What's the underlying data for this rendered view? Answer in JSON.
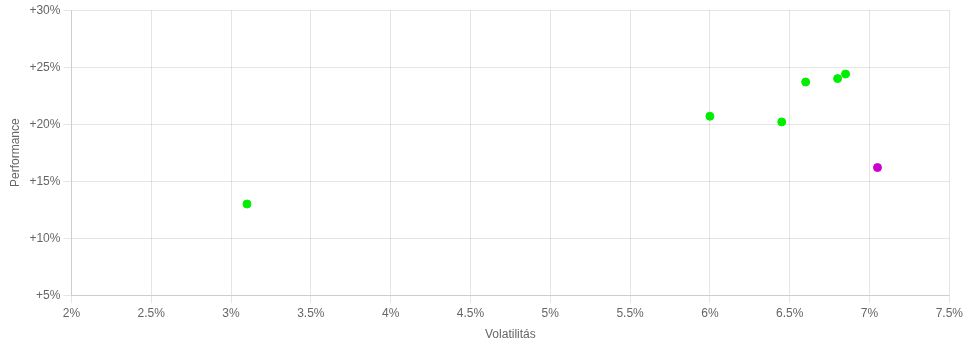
{
  "chart_data": {
    "type": "scatter",
    "xlabel": "Volatilitás",
    "ylabel": "Performance",
    "xlim": [
      0.02,
      0.075
    ],
    "ylim": [
      0.05,
      0.3
    ],
    "xticks": [
      {
        "value": 0.02,
        "label": "2%"
      },
      {
        "value": 0.025,
        "label": "2.5%"
      },
      {
        "value": 0.03,
        "label": "3%"
      },
      {
        "value": 0.035,
        "label": "3.5%"
      },
      {
        "value": 0.04,
        "label": "4%"
      },
      {
        "value": 0.045,
        "label": "4.5%"
      },
      {
        "value": 0.05,
        "label": "5%"
      },
      {
        "value": 0.055,
        "label": "5.5%"
      },
      {
        "value": 0.06,
        "label": "6%"
      },
      {
        "value": 0.065,
        "label": "6.5%"
      },
      {
        "value": 0.07,
        "label": "7%"
      },
      {
        "value": 0.075,
        "label": "7.5%"
      }
    ],
    "yticks": [
      {
        "value": 0.05,
        "label": "+5%"
      },
      {
        "value": 0.1,
        "label": "+10%"
      },
      {
        "value": 0.15,
        "label": "+15%"
      },
      {
        "value": 0.2,
        "label": "+20%"
      },
      {
        "value": 0.25,
        "label": "+25%"
      },
      {
        "value": 0.3,
        "label": "+30%"
      }
    ],
    "grid": true,
    "series": [
      {
        "color": "#00ee00",
        "x": [
          0.031,
          0.06,
          0.0645,
          0.066,
          0.068,
          0.0685
        ],
        "values": [
          0.13,
          0.207,
          0.202,
          0.237,
          0.24,
          0.244
        ]
      },
      {
        "color": "#cc00cc",
        "x": [
          0.0705
        ],
        "values": [
          0.162
        ]
      }
    ]
  }
}
